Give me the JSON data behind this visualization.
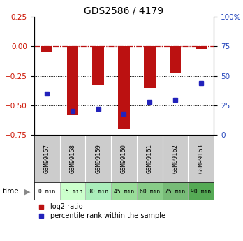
{
  "title": "GDS2586 / 4179",
  "samples": [
    "GSM99157",
    "GSM99158",
    "GSM99159",
    "GSM99160",
    "GSM99161",
    "GSM99162",
    "GSM99163"
  ],
  "time_labels": [
    "0 min",
    "15 min",
    "30 min",
    "45 min",
    "60 min",
    "75 min",
    "90 min"
  ],
  "log2_ratio": [
    -0.05,
    -0.58,
    -0.32,
    -0.7,
    -0.35,
    -0.22,
    -0.02
  ],
  "percentile_rank": [
    35,
    20,
    22,
    18,
    28,
    30,
    44
  ],
  "bar_color": "#BB1111",
  "dot_color": "#2222BB",
  "left_ylim": [
    -0.75,
    0.25
  ],
  "right_ylim": [
    0,
    100
  ],
  "left_yticks": [
    0.25,
    0,
    -0.25,
    -0.5,
    -0.75
  ],
  "right_yticks": [
    100,
    75,
    50,
    25,
    0
  ],
  "right_yticklabels": [
    "100%",
    "75",
    "50",
    "25",
    "0"
  ],
  "dotted_lines": [
    -0.25,
    -0.5
  ],
  "background_color": "#ffffff",
  "time_bg_colors": [
    "#ffffff",
    "#ccffcc",
    "#aaeebb",
    "#99dd99",
    "#88cc88",
    "#77bb77",
    "#55aa55"
  ],
  "sample_bg_color": "#cccccc",
  "bar_width": 0.45
}
